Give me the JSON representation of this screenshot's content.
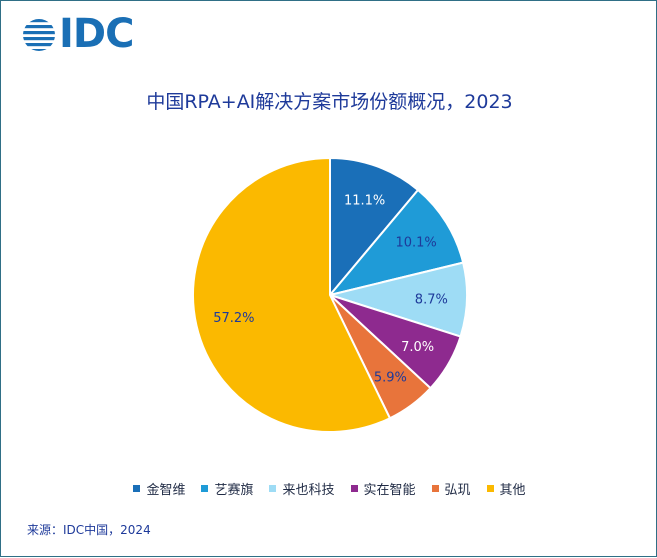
{
  "brand": {
    "name": "IDC",
    "color": "#1a6fb5"
  },
  "chart_data": {
    "type": "pie",
    "title": "中国RPA+AI解决方案市场份额概况，2023",
    "series": [
      {
        "name": "金智维",
        "value": 11.1,
        "label": "11.1%",
        "color": "#1a6fb8",
        "label_color": "#ffffff"
      },
      {
        "name": "艺赛旗",
        "value": 10.1,
        "label": "10.1%",
        "color": "#1f9bd7",
        "label_color": "#1e3a9a"
      },
      {
        "name": "来也科技",
        "value": 8.7,
        "label": "8.7%",
        "color": "#9edcf5",
        "label_color": "#1e3a9a"
      },
      {
        "name": "实在智能",
        "value": 7.0,
        "label": "7.0%",
        "color": "#8e2a8f",
        "label_color": "#ffffff"
      },
      {
        "name": "弘玑",
        "value": 5.9,
        "label": "5.9%",
        "color": "#e8743b",
        "label_color": "#1e3a9a"
      },
      {
        "name": "其他",
        "value": 57.2,
        "label": "57.2%",
        "color": "#fbb900",
        "label_color": "#1e3a9a"
      }
    ],
    "legend_position": "bottom"
  },
  "footer": {
    "source": "来源：IDC中国，2024"
  }
}
